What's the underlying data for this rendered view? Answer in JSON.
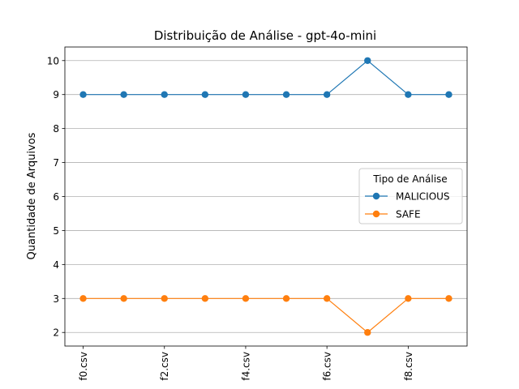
{
  "chart_data": {
    "type": "line",
    "title": "Distribuição de Análise - gpt-4o-mini",
    "xlabel": "",
    "ylabel": "Quantidade de Arquivos",
    "x": [
      0,
      1,
      2,
      3,
      4,
      5,
      6,
      7,
      8,
      9
    ],
    "xtick_positions": [
      0,
      2,
      4,
      6,
      8
    ],
    "xtick_labels": [
      "f0.csv",
      "f2.csv",
      "f4.csv",
      "f6.csv",
      "f8.csv"
    ],
    "yticks": [
      2,
      3,
      4,
      5,
      6,
      7,
      8,
      9,
      10
    ],
    "ylim": [
      1.6,
      10.4
    ],
    "xlim": [
      -0.45,
      9.45
    ],
    "grid": "horizontal",
    "legend_title": "Tipo de Análise",
    "legend_placement": "center-right",
    "series": [
      {
        "name": "MALICIOUS",
        "color": "#1f77b4",
        "values": [
          9,
          9,
          9,
          9,
          9,
          9,
          9,
          10,
          9,
          9
        ]
      },
      {
        "name": "SAFE",
        "color": "#ff7f0e",
        "values": [
          3,
          3,
          3,
          3,
          3,
          3,
          3,
          2,
          3,
          3
        ]
      }
    ]
  }
}
